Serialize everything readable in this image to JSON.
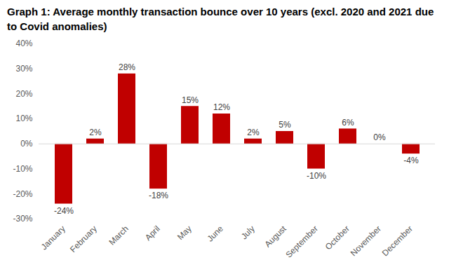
{
  "chart_data": {
    "type": "bar",
    "title": "Graph 1: Average monthly transaction bounce over 10 years (excl. 2020 and 2021 due to Covid anomalies)",
    "categories": [
      "January",
      "February",
      "March",
      "April",
      "May",
      "June",
      "July",
      "August",
      "September",
      "October",
      "November",
      "December"
    ],
    "values": [
      -24,
      2,
      28,
      -18,
      15,
      12,
      2,
      5,
      -10,
      6,
      0,
      -4
    ],
    "value_labels": [
      "-24%",
      "2%",
      "28%",
      "-18%",
      "15%",
      "12%",
      "2%",
      "5%",
      "-10%",
      "6%",
      "0%",
      "-4%"
    ],
    "color": "#c00000",
    "ylim": [
      -30,
      40
    ],
    "yticks": [
      {
        "value": -30,
        "label": "-30%"
      },
      {
        "value": -20,
        "label": "-20%"
      },
      {
        "value": -10,
        "label": "-10%"
      },
      {
        "value": 0,
        "label": "0%"
      },
      {
        "value": 10,
        "label": "10%"
      },
      {
        "value": 20,
        "label": "20%"
      },
      {
        "value": 30,
        "label": "30%"
      },
      {
        "value": 40,
        "label": "40%"
      }
    ],
    "grid": false,
    "data_labels": true
  }
}
